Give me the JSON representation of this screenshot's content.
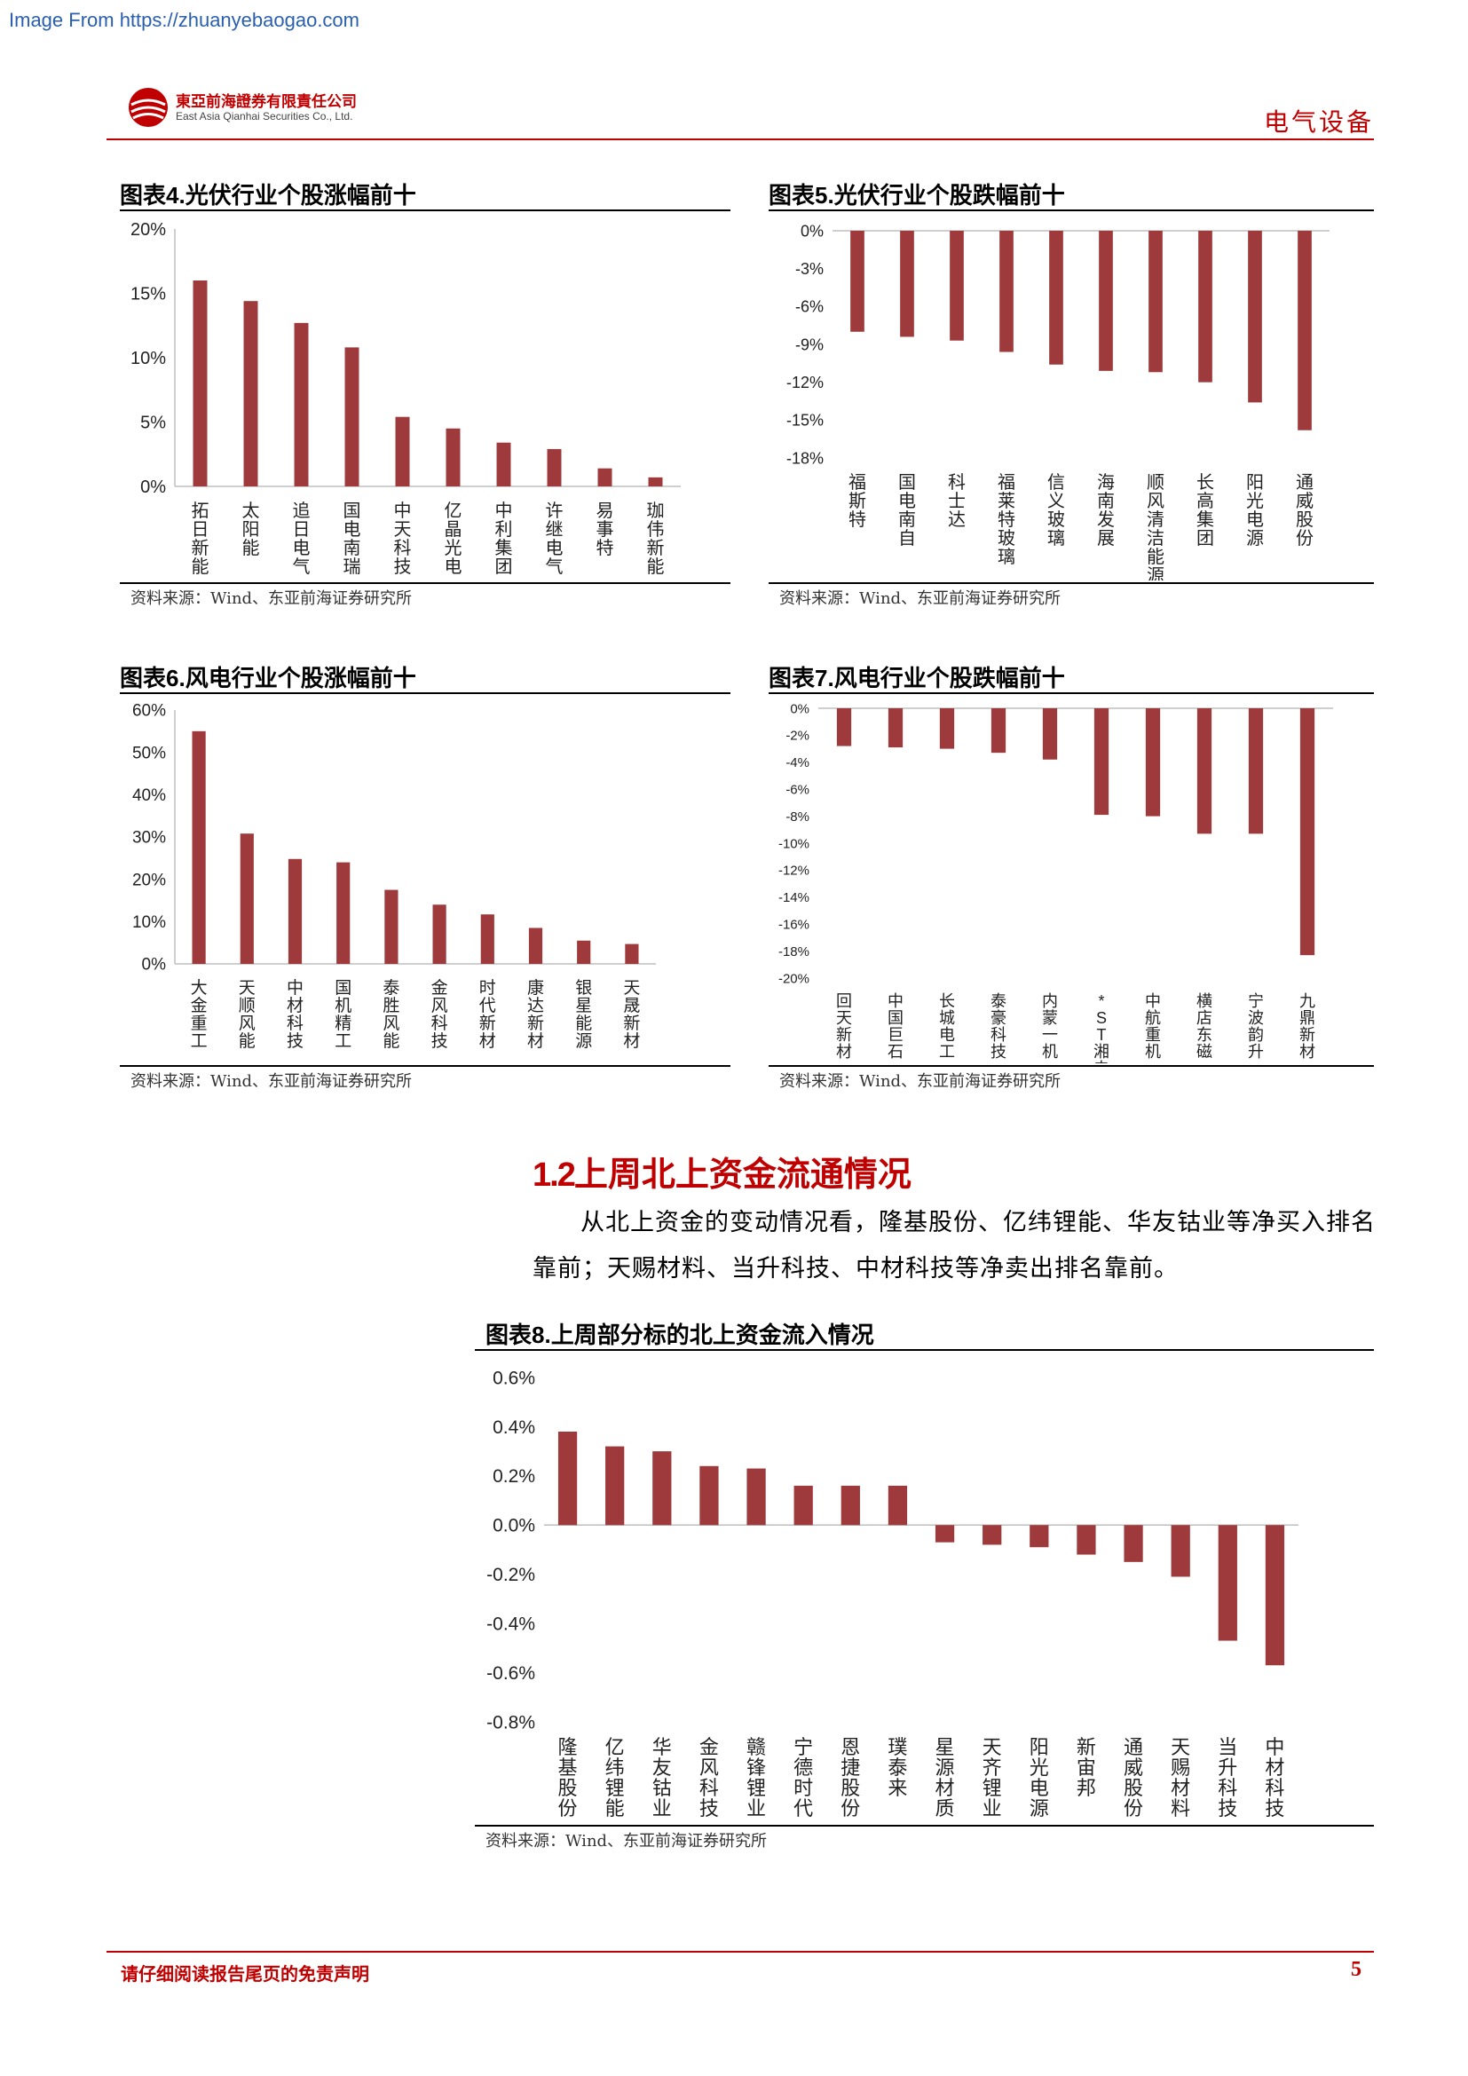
{
  "watermark": "Image From https://zhuanyebaogao.com",
  "header": {
    "company_cn": "東亞前海證券有限責任公司",
    "company_en": "East Asia Qianhai Securities Co., Ltd.",
    "sector": "电气设备"
  },
  "figures": {
    "fig4": {
      "prefix": "图表",
      "num": "4.",
      "title": "光伏行业个股涨幅前十",
      "source": "资料来源：Wind、东亚前海证券研究所"
    },
    "fig5": {
      "prefix": "图表",
      "num": "5.",
      "title": "光伏行业个股跌幅前十",
      "source": "资料来源：Wind、东亚前海证券研究所"
    },
    "fig6": {
      "prefix": "图表",
      "num": "6.",
      "title": "风电行业个股涨幅前十",
      "source": "资料来源：Wind、东亚前海证券研究所"
    },
    "fig7": {
      "prefix": "图表",
      "num": "7.",
      "title": "风电行业个股跌幅前十",
      "source": "资料来源：Wind、东亚前海证券研究所"
    },
    "fig8": {
      "prefix": "图表",
      "num": "8.",
      "title": "上周部分标的北上资金流入情况",
      "source": "资料来源：Wind、东亚前海证券研究所"
    }
  },
  "section": {
    "num": "1.2",
    "title": "上周北上资金流通情况",
    "paragraph": "从北上资金的变动情况看，隆基股份、亿纬锂能、华友钴业等净买入排名靠前；天赐材料、当升科技、中材科技等净卖出排名靠前。"
  },
  "footer": {
    "disclaimer": "请仔细阅读报告尾页的免责声明",
    "page": "5"
  },
  "colors": {
    "bar": "#9e3a3b",
    "accent": "#c00000"
  },
  "chart_data": [
    {
      "id": "fig4",
      "type": "bar",
      "categories": [
        "拓日新能",
        "太阳能",
        "追日电气",
        "国电南瑞",
        "中天科技",
        "亿晶光电",
        "中利集团",
        "许继电气",
        "易事特",
        "珈伟新能"
      ],
      "values": [
        16.0,
        14.4,
        12.7,
        10.8,
        5.4,
        4.5,
        3.4,
        2.9,
        1.4,
        0.7
      ],
      "ylim": [
        0,
        20
      ],
      "yticks": [
        0,
        5,
        10,
        15,
        20
      ],
      "ytick_labels": [
        "0%",
        "5%",
        "10%",
        "15%",
        "20%"
      ]
    },
    {
      "id": "fig5",
      "type": "bar",
      "categories": [
        "福斯特",
        "国电南自",
        "科士达",
        "福莱特玻璃",
        "信义玻璃",
        "海南发展",
        "顺风清洁能源",
        "长高集团",
        "阳光电源",
        "通威股份"
      ],
      "values": [
        -8.0,
        -8.4,
        -8.7,
        -9.6,
        -10.6,
        -11.1,
        -11.2,
        -12.0,
        -13.6,
        -15.8
      ],
      "ylim": [
        -18,
        0
      ],
      "yticks": [
        0,
        -3,
        -6,
        -9,
        -12,
        -15,
        -18
      ],
      "ytick_labels": [
        "0%",
        "-3%",
        "-6%",
        "-9%",
        "-12%",
        "-15%",
        "-18%"
      ]
    },
    {
      "id": "fig6",
      "type": "bar",
      "categories": [
        "大金重工",
        "天顺风能",
        "中材科技",
        "国机精工",
        "泰胜风能",
        "金风科技",
        "时代新材",
        "康达新材",
        "银星能源",
        "天晟新材"
      ],
      "values": [
        55.0,
        30.8,
        24.8,
        24.0,
        17.5,
        14.0,
        11.7,
        8.5,
        5.5,
        4.7
      ],
      "ylim": [
        0,
        60
      ],
      "yticks": [
        0,
        10,
        20,
        30,
        40,
        50,
        60
      ],
      "ytick_labels": [
        "0%",
        "10%",
        "20%",
        "30%",
        "40%",
        "50%",
        "60%"
      ]
    },
    {
      "id": "fig7",
      "type": "bar",
      "categories": [
        "回天新材",
        "中国巨石",
        "长城电工",
        "泰豪科技",
        "内蒙一机",
        "*ST湘电",
        "中航重机",
        "横店东磁",
        "宁波韵升",
        "九鼎新材"
      ],
      "values": [
        -2.8,
        -2.9,
        -3.0,
        -3.3,
        -3.8,
        -7.9,
        -8.0,
        -9.3,
        -9.3,
        -18.3
      ],
      "ylim": [
        -20,
        0
      ],
      "yticks": [
        0,
        -2,
        -4,
        -6,
        -8,
        -10,
        -12,
        -14,
        -16,
        -18,
        -20
      ],
      "ytick_labels": [
        "0%",
        "-2%",
        "-4%",
        "-6%",
        "-8%",
        "-10%",
        "-12%",
        "-14%",
        "-16%",
        "-18%",
        "-20%"
      ]
    },
    {
      "id": "fig8",
      "type": "bar",
      "categories": [
        "隆基股份",
        "亿纬锂能",
        "华友钴业",
        "金风科技",
        "赣锋锂业",
        "宁德时代",
        "恩捷股份",
        "璞泰来",
        "星源材质",
        "天齐锂业",
        "阳光电源",
        "新宙邦",
        "通威股份",
        "天赐材料",
        "当升科技",
        "中材科技"
      ],
      "values": [
        0.38,
        0.32,
        0.3,
        0.24,
        0.23,
        0.16,
        0.16,
        0.16,
        -0.07,
        -0.08,
        -0.09,
        -0.12,
        -0.15,
        -0.21,
        -0.47,
        -0.57
      ],
      "ylim": [
        -0.8,
        0.6
      ],
      "yticks": [
        0.6,
        0.4,
        0.2,
        0.0,
        -0.2,
        -0.4,
        -0.6,
        -0.8
      ],
      "ytick_labels": [
        "0.6%",
        "0.4%",
        "0.2%",
        "0.0%",
        "-0.2%",
        "-0.4%",
        "-0.6%",
        "-0.8%"
      ]
    }
  ]
}
